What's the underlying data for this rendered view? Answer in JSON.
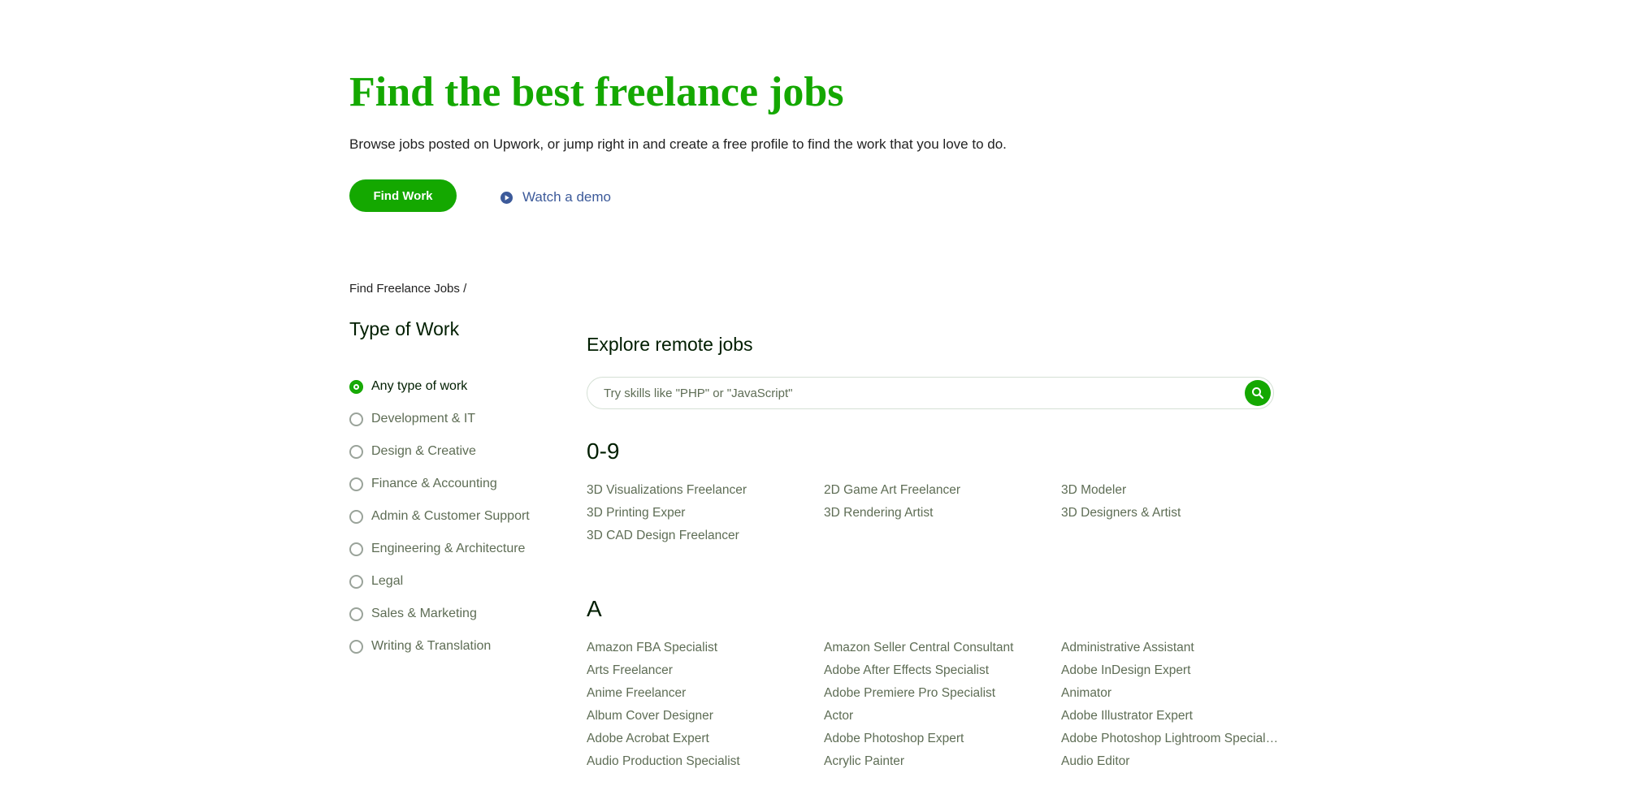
{
  "header": {
    "title": "Find the best freelance jobs",
    "subtitle": "Browse jobs posted on Upwork, or jump right in and create a free profile to find the work that you love to do.",
    "primary_button": "Find Work",
    "demo_link": "Watch a demo"
  },
  "breadcrumb": "Find Freelance Jobs /",
  "filter": {
    "title": "Type of Work",
    "options": [
      "Any type of work",
      "Development & IT",
      "Design & Creative",
      "Finance & Accounting",
      "Admin & Customer Support",
      "Engineering & Architecture",
      "Legal",
      "Sales & Marketing",
      "Writing & Translation"
    ]
  },
  "explore": {
    "title": "Explore remote jobs",
    "search_placeholder": "Try skills like \"PHP\" or \"JavaScript\"",
    "sections": [
      {
        "heading": "0-9",
        "items": [
          "3D Visualizations Freelancer",
          "2D Game Art Freelancer",
          "3D Modeler",
          "3D Printing Exper",
          "3D Rendering Artist",
          "3D Designers & Artist",
          "3D CAD Design Freelancer"
        ]
      },
      {
        "heading": "A",
        "items": [
          "Amazon FBA Specialist",
          "Amazon Seller Central Consultant",
          "Administrative Assistant",
          "Arts Freelancer",
          "Adobe After Effects Specialist",
          "Adobe InDesign Expert",
          "Anime Freelancer",
          "Adobe Premiere Pro Specialist",
          "Animator",
          "Album Cover Designer",
          "Actor",
          "Adobe Illustrator Expert",
          "Adobe Acrobat Expert",
          "Adobe Photoshop Expert",
          "Adobe Photoshop Lightroom Special…",
          "Audio Production Specialist",
          "Acrylic Painter",
          "Audio Editor"
        ]
      }
    ]
  }
}
